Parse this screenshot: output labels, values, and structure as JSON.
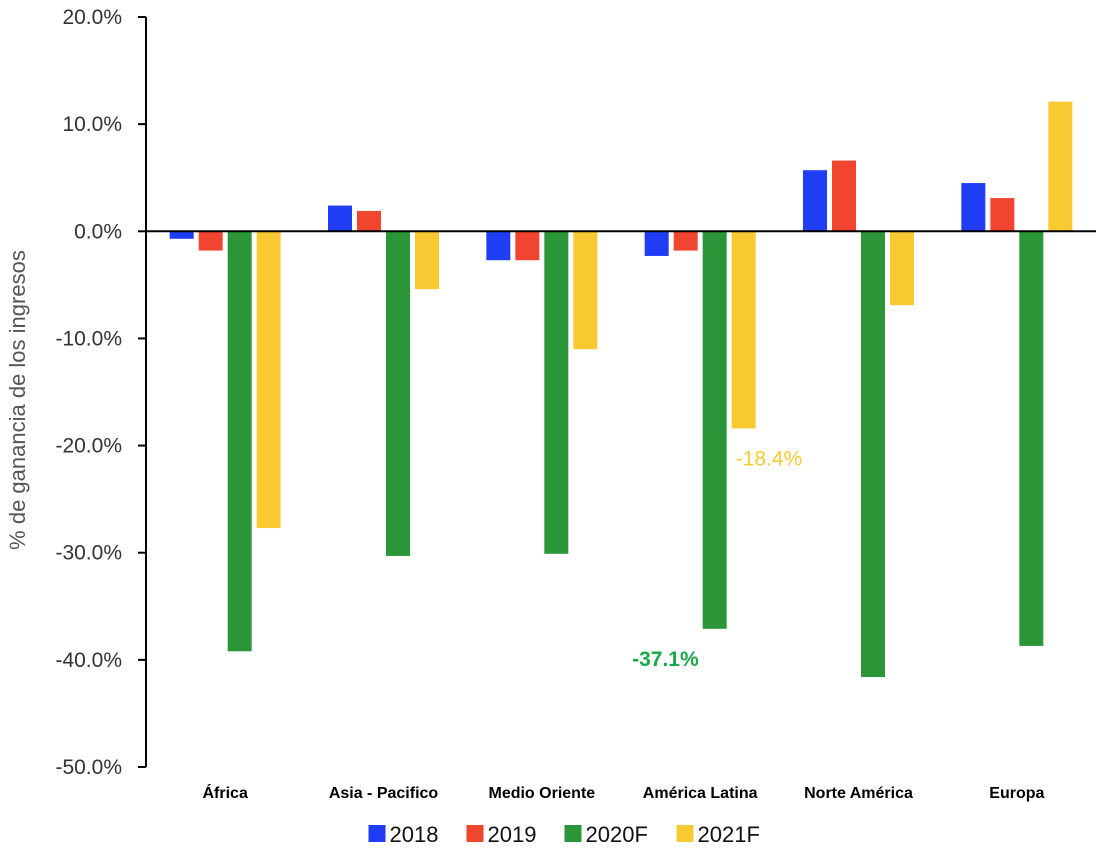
{
  "chart_data": {
    "type": "bar",
    "title": "",
    "xlabel": "",
    "ylabel": "% de ganancia de los ingresos",
    "ylim": [
      -50,
      20
    ],
    "yticks": [
      20,
      10,
      0,
      -10,
      -20,
      -30,
      -40,
      -50
    ],
    "ytick_labels": [
      "20.0%",
      "10.0%",
      "0.0%",
      "-10.0%",
      "-20.0%",
      "-30.0%",
      "-40.0%",
      "-50.0%"
    ],
    "categories": [
      "África",
      "Asia - Pacifico",
      "Medio Oriente",
      "América Latina",
      "Norte América",
      "Europa"
    ],
    "series": [
      {
        "name": "2018",
        "color": "#1f3df5",
        "values": [
          -0.7,
          2.4,
          -2.7,
          -2.3,
          5.7,
          4.5
        ]
      },
      {
        "name": "2019",
        "color": "#f2452f",
        "values": [
          -1.8,
          1.9,
          -2.7,
          -1.8,
          6.6,
          3.1
        ]
      },
      {
        "name": "2020F",
        "color": "#2b9638",
        "values": [
          -39.2,
          -30.3,
          -30.1,
          -37.1,
          -41.6,
          -38.7
        ]
      },
      {
        "name": "2021F",
        "color": "#f9c932",
        "values": [
          -27.7,
          -5.4,
          -11.0,
          -18.4,
          -6.9,
          12.1
        ]
      }
    ],
    "annotations": [
      {
        "text": "-18.4%",
        "category": "América Latina",
        "series": "2021F",
        "color": "#f9c932",
        "bold": false
      },
      {
        "text": "-37.1%",
        "category": "América Latina",
        "series": "2020F",
        "color": "#18a84a",
        "bold": true
      }
    ],
    "grid": false,
    "legend_position": "bottom"
  }
}
